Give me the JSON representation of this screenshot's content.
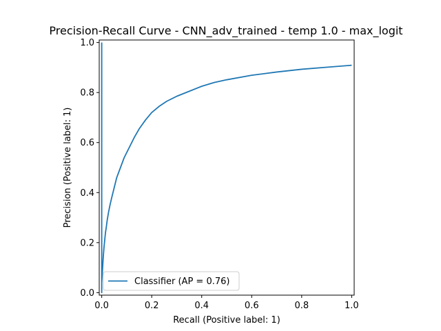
{
  "chart_data": {
    "type": "line",
    "title": "Precision-Recall Curve - CNN_adv_trained - temp 1.0 - max_logit",
    "xlabel": "Recall (Positive label: 1)",
    "ylabel": "Precision (Positive label: 1)",
    "xlim": [
      -0.01,
      1.01
    ],
    "ylim": [
      -0.01,
      1.01
    ],
    "xticks": [
      "0.0",
      "0.2",
      "0.4",
      "0.6",
      "0.8",
      "1.0"
    ],
    "yticks": [
      "0.0",
      "0.2",
      "0.4",
      "0.6",
      "0.8",
      "1.0"
    ],
    "grid": false,
    "legend_position": "lower-left",
    "series": [
      {
        "name": "Classifier (AP = 0.76)",
        "color": "#1f77b4",
        "x": [
          0.0,
          0.0,
          0.0,
          0.003,
          0.006,
          0.009,
          0.012,
          0.015,
          0.018,
          0.022,
          0.027,
          0.033,
          0.04,
          0.05,
          0.06,
          0.075,
          0.09,
          0.11,
          0.13,
          0.15,
          0.175,
          0.2,
          0.23,
          0.26,
          0.3,
          0.35,
          0.4,
          0.45,
          0.5,
          0.6,
          0.7,
          0.8,
          0.9,
          1.0
        ],
        "y": [
          1.0,
          0.0,
          0.04,
          0.09,
          0.14,
          0.18,
          0.21,
          0.24,
          0.26,
          0.29,
          0.32,
          0.35,
          0.38,
          0.42,
          0.46,
          0.5,
          0.54,
          0.58,
          0.62,
          0.655,
          0.69,
          0.72,
          0.745,
          0.765,
          0.785,
          0.805,
          0.825,
          0.84,
          0.851,
          0.869,
          0.882,
          0.893,
          0.901,
          0.909
        ]
      }
    ]
  }
}
